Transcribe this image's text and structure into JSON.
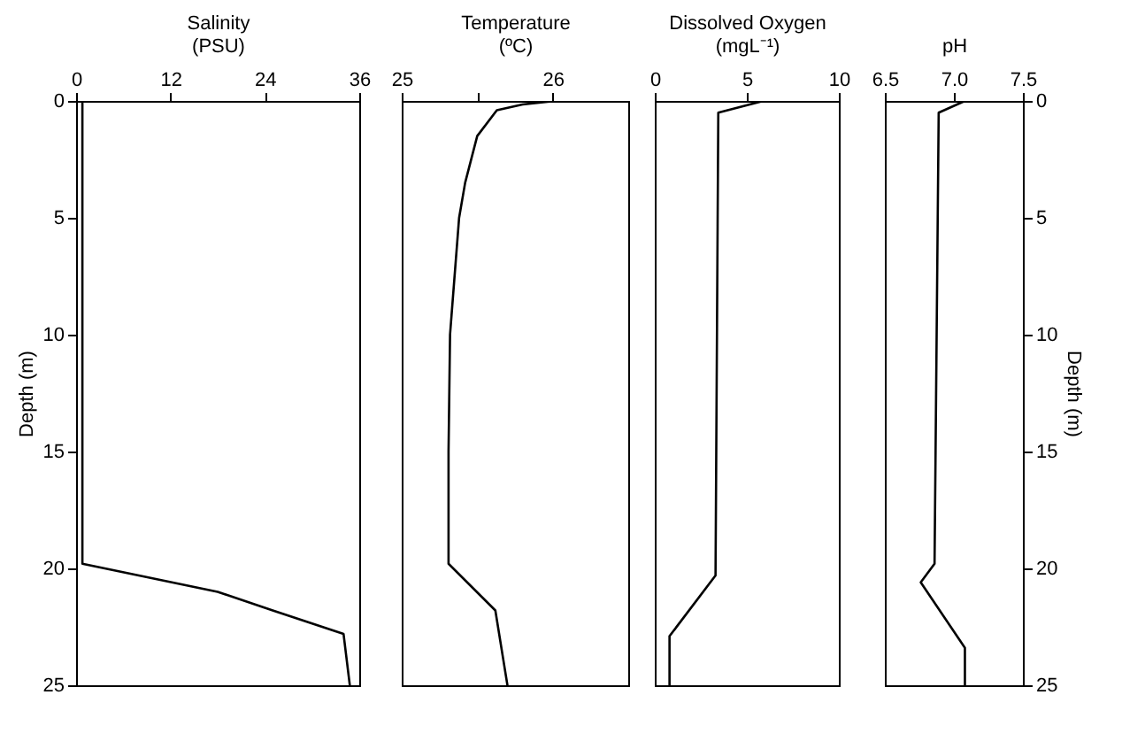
{
  "chart_data": [
    {
      "type": "line",
      "xlabel": "Salinity\n(PSU)",
      "ylabel": "Depth (m)",
      "color": "#000000",
      "marker": "none",
      "line_style": "solid",
      "grid": false,
      "x": [
        0.8,
        0.8,
        18,
        25,
        34,
        34.8
      ],
      "values": [
        0,
        19.8,
        21,
        21.8,
        22.8,
        25
      ],
      "xlim": [
        0,
        36
      ],
      "xticks": [
        0,
        12,
        24,
        36
      ],
      "ylim": [
        25,
        0
      ],
      "yticks": [
        0,
        5,
        10,
        15,
        20,
        25
      ]
    },
    {
      "type": "line",
      "xlabel": "Temperature\n(ºC)",
      "color": "#000000",
      "marker": "none",
      "line_style": "solid",
      "grid": false,
      "tick_labels": "x",
      "x": [
        26.02,
        25.8,
        25.63,
        25.5,
        25.42,
        25.38,
        25.32,
        25.31,
        25.31,
        25.62,
        25.7
      ],
      "values": [
        0,
        0.15,
        0.4,
        1.5,
        3.5,
        5,
        10,
        15,
        19.8,
        21.8,
        25
      ],
      "xlim": [
        25,
        26.5
      ],
      "xticks": [
        25,
        {
          "value": 25.5,
          "label": null
        },
        26
      ],
      "ylim": [
        25,
        0
      ],
      "yticks": [
        0,
        5,
        10,
        15,
        20,
        25
      ]
    },
    {
      "type": "line",
      "xlabel": "Dissolved Oxygen\n(mgL⁻¹)",
      "color": "#000000",
      "marker": "none",
      "line_style": "solid",
      "grid": false,
      "tick_labels": "x",
      "x": [
        5.9,
        3.45,
        3.3,
        0.8,
        0.8
      ],
      "values": [
        0,
        0.5,
        20.3,
        22.9,
        25
      ],
      "xlim": [
        0,
        10
      ],
      "xticks": [
        0,
        5,
        10
      ],
      "ylim": [
        25,
        0
      ],
      "yticks": [
        0,
        5,
        10,
        15,
        20,
        25
      ]
    },
    {
      "type": "line",
      "xlabel": "pH",
      "y2label": "Depth (m)",
      "marker": "none",
      "line_style": "solid",
      "grid": false,
      "series": [
        {
          "color": "#000000",
          "axis": "y2",
          "x": [
            7.08,
            6.89,
            6.86,
            6.76,
            7.08,
            7.08
          ],
          "values": [
            0,
            0.5,
            19.8,
            20.6,
            23.4,
            25
          ]
        }
      ],
      "xlim": [
        6.5,
        7.5
      ],
      "xticks": [
        6.5,
        {
          "value": 7,
          "label": "7.0"
        },
        7.5
      ],
      "y2lim": [
        25,
        0
      ],
      "y2ticks": [
        0,
        5,
        10,
        15,
        20,
        25
      ]
    }
  ]
}
